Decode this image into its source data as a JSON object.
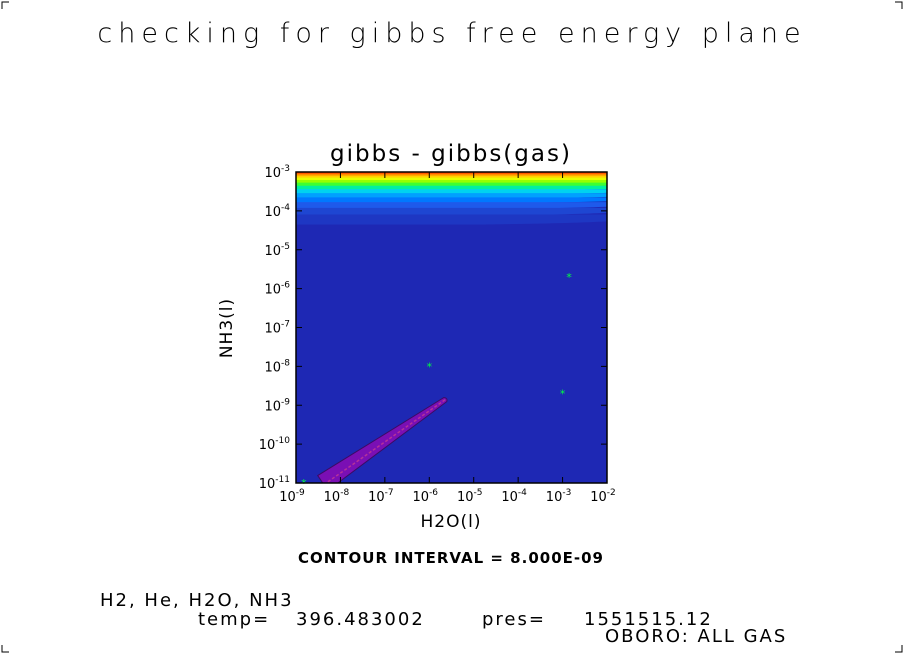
{
  "page": {
    "title": "checking for gibbs free energy plane",
    "contour_note": "CONTOUR INTERVAL = 8.000E-09",
    "species": "H2, He, H2O, NH3",
    "temp_label": "temp=",
    "temp_value": "396.483002",
    "pres_label": "pres=",
    "pres_value": "1551515.12",
    "run_label": "OBORO: ALL GAS"
  },
  "chart_data": {
    "type": "heatmap",
    "title": "gibbs - gibbs(gas)",
    "xlabel": "H2O(l)",
    "ylabel": "NH3(l)",
    "x_scale": "log",
    "y_scale": "log",
    "xlim": [
      1e-09,
      0.01
    ],
    "ylim": [
      1e-11,
      0.001
    ],
    "x_ticks": [
      {
        "value": 1e-09,
        "base": "10",
        "exp": "-9"
      },
      {
        "value": 1e-08,
        "base": "10",
        "exp": "-8"
      },
      {
        "value": 1e-07,
        "base": "10",
        "exp": "-7"
      },
      {
        "value": 1e-06,
        "base": "10",
        "exp": "-6"
      },
      {
        "value": 1e-05,
        "base": "10",
        "exp": "-5"
      },
      {
        "value": 0.0001,
        "base": "10",
        "exp": "-4"
      },
      {
        "value": 0.001,
        "base": "10",
        "exp": "-3"
      },
      {
        "value": 0.01,
        "base": "10",
        "exp": "-2"
      }
    ],
    "y_ticks": [
      {
        "value": 1e-11,
        "base": "10",
        "exp": "-11"
      },
      {
        "value": 1e-10,
        "base": "10",
        "exp": "-10"
      },
      {
        "value": 1e-09,
        "base": "10",
        "exp": "-9"
      },
      {
        "value": 1e-08,
        "base": "10",
        "exp": "-8"
      },
      {
        "value": 1e-07,
        "base": "10",
        "exp": "-7"
      },
      {
        "value": 1e-06,
        "base": "10",
        "exp": "-6"
      },
      {
        "value": 1e-05,
        "base": "10",
        "exp": "-5"
      },
      {
        "value": 0.0001,
        "base": "10",
        "exp": "-4"
      },
      {
        "value": 0.001,
        "base": "10",
        "exp": "-3"
      }
    ],
    "background_color": "#1e28b4",
    "top_bands": [
      {
        "log_y_from": -3.0,
        "log_y_to": -3.04,
        "color": "#ff0000"
      },
      {
        "log_y_from": -3.04,
        "log_y_to": -3.08,
        "color": "#ff5a00"
      },
      {
        "log_y_from": -3.08,
        "log_y_to": -3.12,
        "color": "#ff9600"
      },
      {
        "log_y_from": -3.12,
        "log_y_to": -3.17,
        "color": "#ffd200"
      },
      {
        "log_y_from": -3.17,
        "log_y_to": -3.23,
        "color": "#e6ff00"
      },
      {
        "log_y_from": -3.23,
        "log_y_to": -3.3,
        "color": "#96ff00"
      },
      {
        "log_y_from": -3.3,
        "log_y_to": -3.38,
        "color": "#3cff32"
      },
      {
        "log_y_from": -3.38,
        "log_y_to": -3.47,
        "color": "#00f0a0"
      },
      {
        "log_y_from": -3.47,
        "log_y_to": -3.57,
        "color": "#00d2f0"
      },
      {
        "log_y_from": -3.57,
        "log_y_to": -3.68,
        "color": "#00a0ff"
      },
      {
        "log_y_from": -3.68,
        "log_y_to": -3.8,
        "color": "#0078ff"
      },
      {
        "log_y_from": -3.8,
        "log_y_to": -3.95,
        "color": "#1e5aeb"
      },
      {
        "log_y_from": -3.95,
        "log_y_to": -4.12,
        "color": "#1e46d2"
      },
      {
        "log_y_from": -4.12,
        "log_y_to": -4.35,
        "color": "#1e37c3"
      }
    ],
    "diagonal_feature": {
      "from": [
        4e-09,
        1e-11
      ],
      "to": [
        2.3e-06,
        1.4e-09
      ],
      "color": "#7a0fb4"
    },
    "points": [
      {
        "x": 1.5e-09,
        "y": 1e-11
      },
      {
        "x": 1e-06,
        "y": 1e-08
      },
      {
        "x": 0.001,
        "y": 2e-09
      },
      {
        "x": 0.0014,
        "y": 2e-06
      }
    ],
    "point_color": "#00ff40"
  }
}
